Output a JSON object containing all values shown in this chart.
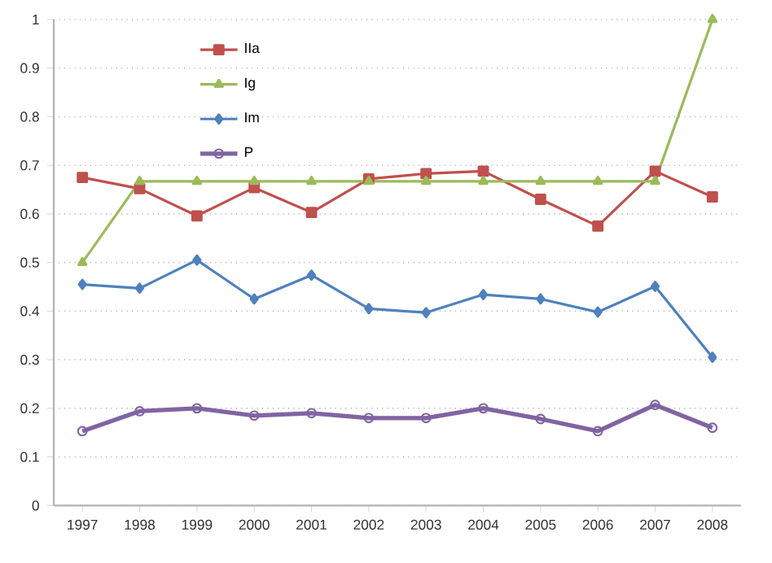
{
  "chart_data": {
    "type": "line",
    "categories": [
      "1997",
      "1998",
      "1999",
      "2000",
      "2001",
      "2002",
      "2003",
      "2004",
      "2005",
      "2006",
      "2007",
      "2008"
    ],
    "series": [
      {
        "name": "IIa",
        "color": "#c0504d",
        "marker": "square",
        "values": [
          0.675,
          0.652,
          0.596,
          0.654,
          0.603,
          0.672,
          0.683,
          0.688,
          0.63,
          0.575,
          0.688,
          0.635
        ]
      },
      {
        "name": "Ig",
        "color": "#9bbb59",
        "marker": "triangle",
        "values": [
          0.5,
          0.667,
          0.667,
          0.667,
          0.667,
          0.667,
          0.667,
          0.667,
          0.667,
          0.667,
          0.667,
          1.0
        ]
      },
      {
        "name": "Im",
        "color": "#4f81bd",
        "marker": "diamond",
        "values": [
          0.455,
          0.447,
          0.505,
          0.425,
          0.474,
          0.405,
          0.397,
          0.434,
          0.425,
          0.398,
          0.451,
          0.305
        ]
      },
      {
        "name": "P",
        "color": "#8064a2",
        "marker": "circle",
        "values": [
          0.153,
          0.194,
          0.2,
          0.185,
          0.19,
          0.18,
          0.18,
          0.2,
          0.178,
          0.153,
          0.207,
          0.16
        ]
      }
    ],
    "ylim": [
      0,
      1
    ],
    "yticks": [
      0,
      0.1,
      0.2,
      0.3,
      0.4,
      0.5,
      0.6,
      0.7,
      0.8,
      0.9,
      1
    ],
    "grid": "y",
    "legend": "top left"
  }
}
